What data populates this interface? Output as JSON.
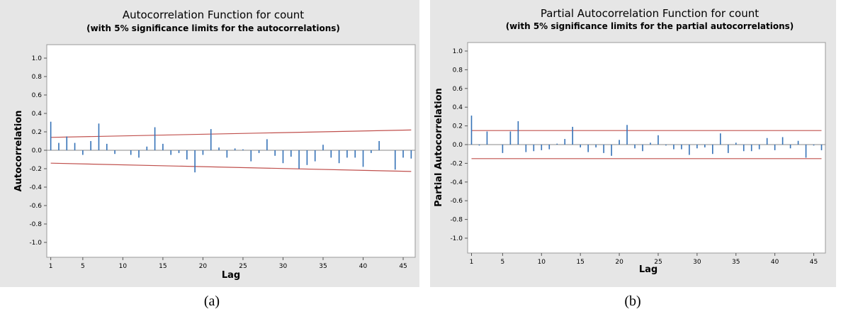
{
  "chart_data": [
    {
      "type": "bar",
      "panel": "a",
      "title": "Autocorrelation Function for count",
      "subtitle": "(with 5% significance limits for the autocorrelations)",
      "xlabel": "Lag",
      "ylabel": "Autocorrelation",
      "ylim": [
        -1.0,
        1.0
      ],
      "yticks": [
        "1.0",
        "0.8",
        "0.6",
        "0.4",
        "0.2",
        "0.0",
        "-0.2",
        "-0.4",
        "-0.6",
        "-0.8",
        "-1.0"
      ],
      "xticks": [
        1,
        5,
        10,
        15,
        20,
        25,
        30,
        35,
        40,
        45
      ],
      "xlim": [
        0.5,
        46.5
      ],
      "lags": [
        1,
        2,
        3,
        4,
        5,
        6,
        7,
        8,
        9,
        10,
        11,
        12,
        13,
        14,
        15,
        16,
        17,
        18,
        19,
        20,
        21,
        22,
        23,
        24,
        25,
        26,
        27,
        28,
        29,
        30,
        31,
        32,
        33,
        34,
        35,
        36,
        37,
        38,
        39,
        40,
        41,
        42,
        43,
        44,
        45,
        46
      ],
      "values": [
        0.31,
        0.08,
        0.15,
        0.08,
        -0.05,
        0.1,
        0.29,
        0.07,
        -0.04,
        0.0,
        -0.05,
        -0.08,
        0.04,
        0.25,
        0.07,
        -0.05,
        -0.03,
        -0.1,
        -0.24,
        -0.05,
        0.23,
        0.03,
        -0.08,
        0.02,
        0.01,
        -0.12,
        -0.03,
        0.12,
        -0.06,
        -0.14,
        -0.07,
        -0.2,
        -0.16,
        -0.12,
        0.06,
        -0.08,
        -0.14,
        -0.08,
        -0.08,
        -0.18,
        -0.03,
        0.1,
        0.0,
        -0.21,
        -0.08,
        -0.09
      ],
      "significance_limit": {
        "upper": [
          0.14,
          0.22
        ],
        "lower": [
          -0.14,
          -0.23
        ]
      },
      "grid": false,
      "bar_color": "#3572b7",
      "limit_color": "#c0504d"
    },
    {
      "type": "bar",
      "panel": "b",
      "title": "Partial Autocorrelation Function for count",
      "subtitle": "(with 5% significance limits for the partial autocorrelations)",
      "xlabel": "Lag",
      "ylabel": "Partial Autocorrelation",
      "ylim": [
        -1.0,
        1.0
      ],
      "yticks": [
        "1.0",
        "0.8",
        "0.6",
        "0.4",
        "0.2",
        "0.0",
        "-0.2",
        "-0.4",
        "-0.6",
        "-0.8",
        "-1.0"
      ],
      "xticks": [
        1,
        5,
        10,
        15,
        20,
        25,
        30,
        35,
        40,
        45
      ],
      "xlim": [
        0.5,
        46.5
      ],
      "lags": [
        1,
        2,
        3,
        4,
        5,
        6,
        7,
        8,
        9,
        10,
        11,
        12,
        13,
        14,
        15,
        16,
        17,
        18,
        19,
        20,
        21,
        22,
        23,
        24,
        25,
        26,
        27,
        28,
        29,
        30,
        31,
        32,
        33,
        34,
        35,
        36,
        37,
        38,
        39,
        40,
        41,
        42,
        43,
        44,
        45,
        46
      ],
      "values": [
        0.31,
        -0.01,
        0.14,
        0.0,
        -0.09,
        0.14,
        0.25,
        -0.08,
        -0.07,
        -0.06,
        -0.05,
        0.01,
        0.06,
        0.19,
        -0.03,
        -0.08,
        -0.03,
        -0.09,
        -0.12,
        0.05,
        0.21,
        -0.04,
        -0.07,
        0.02,
        0.1,
        -0.01,
        -0.05,
        -0.05,
        -0.11,
        -0.04,
        -0.03,
        -0.1,
        0.12,
        -0.09,
        0.02,
        -0.07,
        -0.07,
        -0.05,
        0.07,
        -0.06,
        0.08,
        -0.04,
        0.04,
        -0.14,
        -0.01,
        -0.06
      ],
      "significance_limit": {
        "upper": [
          0.15,
          0.15
        ],
        "lower": [
          -0.15,
          -0.15
        ]
      },
      "grid": false,
      "bar_color": "#3572b7",
      "limit_color": "#c0504d"
    }
  ],
  "captions": [
    "(a)",
    "(b)"
  ]
}
